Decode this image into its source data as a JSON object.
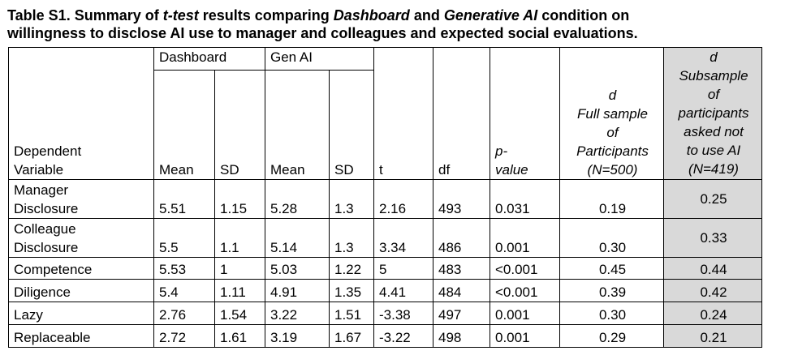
{
  "caption": {
    "prefix": "Table S1. Summary of ",
    "em1": "t-test",
    "mid1": " results comparing ",
    "em2": "Dashboard",
    "mid2": " and ",
    "em3": "Generative AI",
    "line1_end": " condition on",
    "line2": "willingness to disclose AI use to manager and colleagues and expected social evaluations."
  },
  "headers": {
    "group_dashboard": "Dashboard",
    "group_genai": "Gen AI",
    "dv_line1": "Dependent",
    "dv_line2": "Variable",
    "mean1": "Mean",
    "sd1": "SD",
    "mean2": "Mean",
    "sd2": "SD",
    "t": "t",
    "df": "df",
    "p_line1": "p-",
    "p_line2": "value",
    "dfull": [
      "d",
      "Full sample",
      "of",
      "Participants",
      "(N=500)"
    ],
    "dsub": [
      "d",
      "Subsample",
      "of",
      "participants",
      "asked not",
      "to use AI",
      "(N=419)"
    ]
  },
  "rows": [
    {
      "var1": "Manager",
      "var2": "Disclosure",
      "m1": "5.51",
      "sd1": "1.15",
      "m2": "5.28",
      "sd2": "1.3",
      "t": "2.16",
      "df": "493",
      "p": "0.031",
      "dfull": "0.19",
      "dsub": "0.25"
    },
    {
      "var1": "Colleague",
      "var2": "Disclosure",
      "m1": "5.5",
      "sd1": "1.1",
      "m2": "5.14",
      "sd2": "1.3",
      "t": "3.34",
      "df": "486",
      "p": "0.001",
      "dfull": "0.30",
      "dsub": "0.33"
    },
    {
      "var1": "Competence",
      "m1": "5.53",
      "sd1": "1",
      "m2": "5.03",
      "sd2": "1.22",
      "t": "5",
      "df": "483",
      "p": "<0.001",
      "dfull": "0.45",
      "dsub": "0.44"
    },
    {
      "var1": "Diligence",
      "m1": "5.4",
      "sd1": "1.11",
      "m2": "4.91",
      "sd2": "1.35",
      "t": "4.41",
      "df": "484",
      "p": "<0.001",
      "dfull": "0.39",
      "dsub": "0.42"
    },
    {
      "var1": "Lazy",
      "m1": "2.76",
      "sd1": "1.54",
      "m2": "3.22",
      "sd2": "1.51",
      "t": "-3.38",
      "df": "497",
      "p": "0.001",
      "dfull": "0.30",
      "dsub": "0.24"
    },
    {
      "var1": "Replaceable",
      "m1": "2.72",
      "sd1": "1.61",
      "m2": "3.19",
      "sd2": "1.67",
      "t": "-3.22",
      "df": "498",
      "p": "0.001",
      "dfull": "0.29",
      "dsub": "0.21"
    }
  ]
}
